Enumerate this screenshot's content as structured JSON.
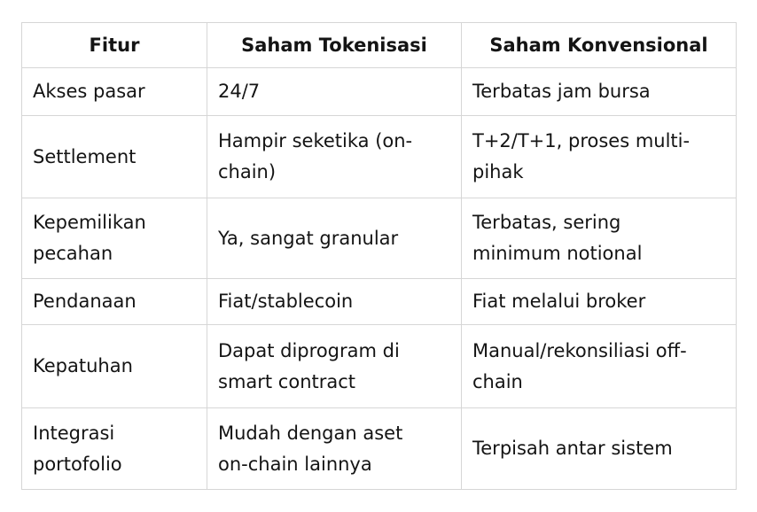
{
  "colors": {
    "background": "#ffffff",
    "border": "#d6d6d6",
    "text": "#141414"
  },
  "table": {
    "columns": [
      "Fitur",
      "Saham Tokenisasi",
      "Saham Konvensional"
    ],
    "rows": [
      [
        "Akses pasar",
        "24/7",
        "Terbatas jam bursa"
      ],
      [
        "Settlement",
        "Hampir seketika (on-\nchain)",
        "T+2/T+1, proses multi-\npihak"
      ],
      [
        "Kepemilikan\npecahan",
        "Ya, sangat granular",
        "Terbatas, sering\nminimum notional"
      ],
      [
        "Pendanaan",
        "Fiat/stablecoin",
        "Fiat melalui broker"
      ],
      [
        "Kepatuhan",
        "Dapat diprogram di\nsmart contract",
        "Manual/rekonsiliasi off-\nchain"
      ],
      [
        "Integrasi\nportofolio",
        "Mudah dengan aset\non-chain lainnya",
        "Terpisah antar sistem"
      ]
    ]
  }
}
